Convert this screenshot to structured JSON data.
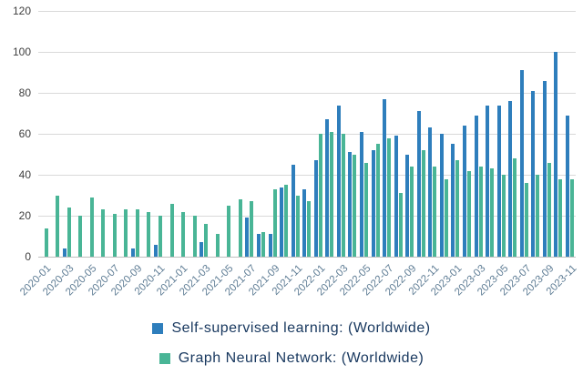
{
  "chart_data": {
    "type": "bar",
    "title": "",
    "xlabel": "",
    "ylabel": "",
    "ylim": [
      0,
      120
    ],
    "y_ticks": [
      0,
      20,
      40,
      60,
      80,
      100,
      120
    ],
    "grid": true,
    "legend_position": "bottom",
    "categories": [
      "2020-01",
      "2020-02",
      "2020-03",
      "2020-04",
      "2020-05",
      "2020-06",
      "2020-07",
      "2020-08",
      "2020-09",
      "2020-10",
      "2020-11",
      "2020-12",
      "2021-01",
      "2021-02",
      "2021-03",
      "2021-04",
      "2021-05",
      "2021-06",
      "2021-07",
      "2021-08",
      "2021-09",
      "2021-10",
      "2021-11",
      "2021-12",
      "2022-01",
      "2022-02",
      "2022-03",
      "2022-04",
      "2022-05",
      "2022-06",
      "2022-07",
      "2022-08",
      "2022-09",
      "2022-10",
      "2022-11",
      "2022-12",
      "2023-01",
      "2023-02",
      "2023-03",
      "2023-04",
      "2023-05",
      "2023-06",
      "2023-07",
      "2023-08",
      "2023-09",
      "2023-10",
      "2023-11"
    ],
    "x_tick_labels": [
      "2020-01",
      "2020-03",
      "2020-05",
      "2020-07",
      "2020-09",
      "2020-11",
      "2021-01",
      "2021-03",
      "2021-05",
      "2021-07",
      "2021-09",
      "2021-11",
      "2022-01",
      "2022-03",
      "2022-05",
      "2022-07",
      "2022-09",
      "2022-11",
      "2023-01",
      "2023-03",
      "2023-05",
      "2023-07",
      "2023-09",
      "2023-11"
    ],
    "series": [
      {
        "name": "Self-supervised learning: (Worldwide)",
        "color": "#2e7ebc",
        "values": [
          0,
          0,
          4,
          0,
          0,
          0,
          0,
          0,
          4,
          0,
          6,
          0,
          0,
          0,
          7,
          0,
          0,
          0,
          19,
          11,
          11,
          34,
          45,
          33,
          47,
          67,
          74,
          51,
          61,
          52,
          77,
          59,
          50,
          71,
          63,
          60,
          55,
          64,
          69,
          74,
          74,
          76,
          91,
          81,
          86,
          100,
          69
        ]
      },
      {
        "name": "Graph Neural Network: (Worldwide)",
        "color": "#49b596",
        "values": [
          14,
          30,
          24,
          20,
          29,
          23,
          21,
          23,
          23,
          22,
          20,
          26,
          22,
          20,
          16,
          11,
          25,
          28,
          27,
          12,
          33,
          35,
          30,
          27,
          60,
          61,
          60,
          50,
          46,
          55,
          58,
          31,
          44,
          52,
          44,
          38,
          47,
          42,
          44,
          43,
          40,
          48,
          36,
          40,
          46,
          38,
          38
        ]
      }
    ]
  },
  "legend": {
    "items": [
      {
        "label": "Self-supervised learning: (Worldwide)",
        "color": "#2e7ebc"
      },
      {
        "label": "Graph Neural Network: (Worldwide)",
        "color": "#49b596"
      }
    ]
  }
}
